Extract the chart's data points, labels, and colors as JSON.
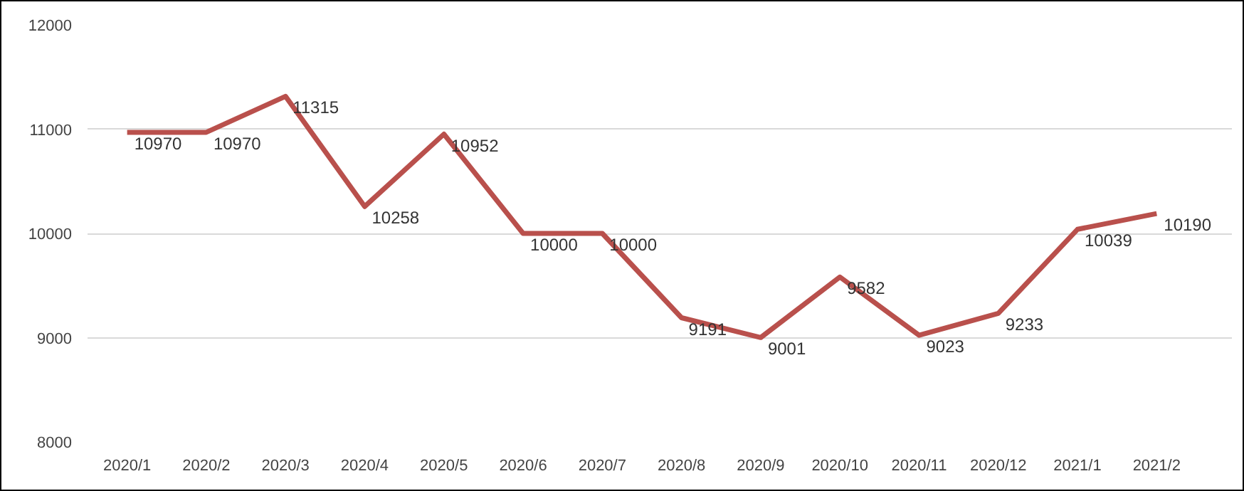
{
  "chart_data": {
    "type": "line",
    "categories": [
      "2020/1",
      "2020/2",
      "2020/3",
      "2020/4",
      "2020/5",
      "2020/6",
      "2020/7",
      "2020/8",
      "2020/9",
      "2020/10",
      "2020/11",
      "2020/12",
      "2021/1",
      "2021/2"
    ],
    "series": [
      {
        "color": "#b9504c",
        "values": [
          10970,
          10970,
          11315,
          10258,
          10952,
          10000,
          10000,
          9191,
          9001,
          9582,
          9023,
          9233,
          10039,
          10190
        ]
      }
    ],
    "ylim": [
      8000,
      12000
    ],
    "yticks": [
      8000,
      9000,
      10000,
      11000,
      12000
    ],
    "grid": "y",
    "data_labels": true,
    "marker": "none",
    "line_style": "solid"
  }
}
